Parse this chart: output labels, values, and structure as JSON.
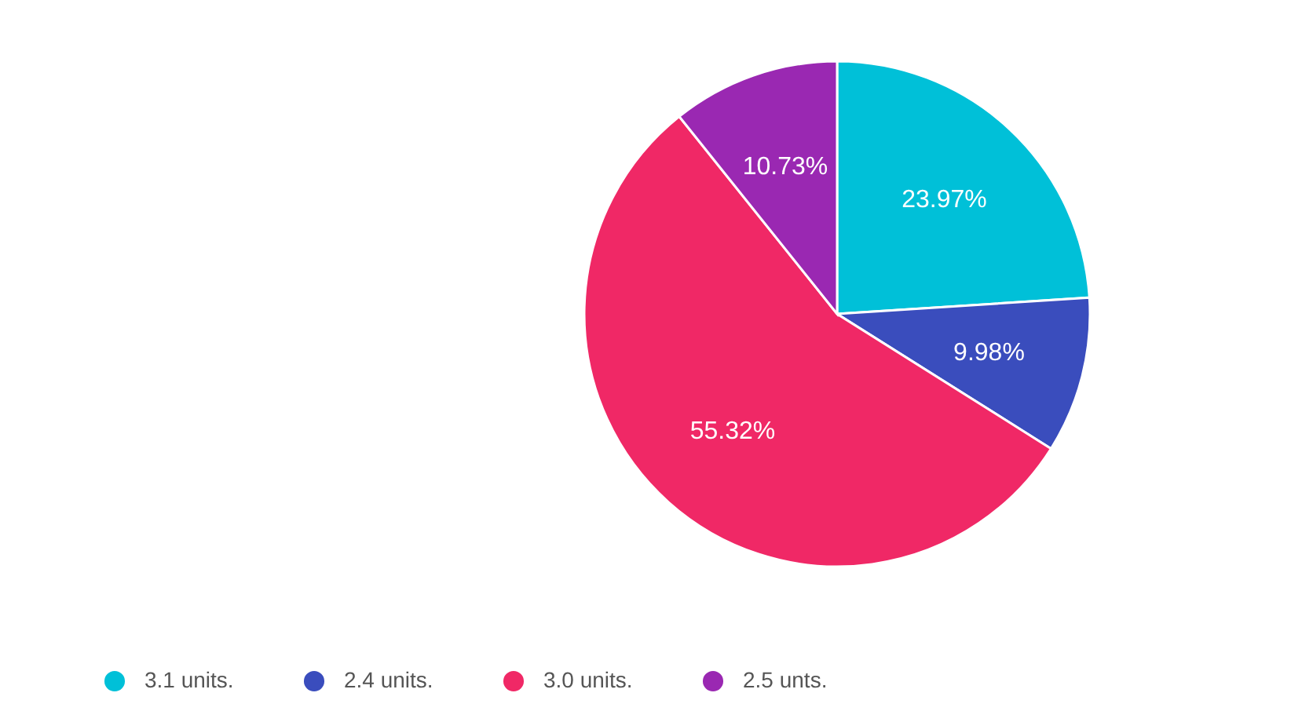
{
  "chart_data": {
    "type": "pie",
    "categories": [
      "3.1 units.",
      "2.4 units.",
      "3.0 units.",
      "2.5 unts."
    ],
    "values": [
      23.97,
      9.98,
      55.32,
      10.73
    ],
    "value_labels": [
      "23.97%",
      "9.98%",
      "55.32%",
      "10.73%"
    ],
    "colors": [
      "#00c0d8",
      "#3a4dbd",
      "#f02866",
      "#9a28b2"
    ],
    "legend": "bottom"
  }
}
